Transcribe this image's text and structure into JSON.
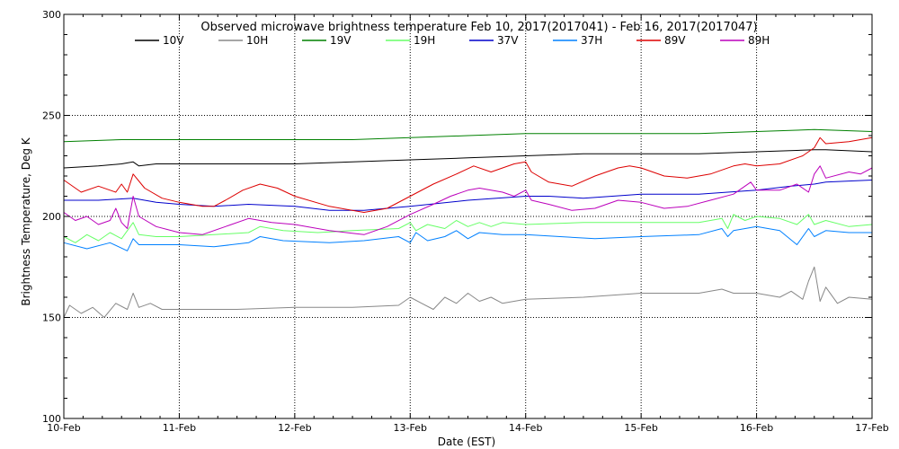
{
  "chart_data": {
    "type": "line",
    "title": "Observed microwave brightness temperature Feb 10, 2017(2017041) - Feb 16, 2017(2017047)",
    "xlabel": "Date (EST)",
    "ylabel": "Brightness Temperature, Deg K",
    "xlim": [
      0,
      7
    ],
    "ylim": [
      100,
      300
    ],
    "x_ticks": [
      {
        "value": 0,
        "label": "10-Feb"
      },
      {
        "value": 1,
        "label": "11-Feb"
      },
      {
        "value": 2,
        "label": "12-Feb"
      },
      {
        "value": 3,
        "label": "13-Feb"
      },
      {
        "value": 4,
        "label": "14-Feb"
      },
      {
        "value": 5,
        "label": "15-Feb"
      },
      {
        "value": 6,
        "label": "16-Feb"
      },
      {
        "value": 7,
        "label": "17-Feb"
      }
    ],
    "y_ticks": [
      {
        "value": 100,
        "label": "100"
      },
      {
        "value": 150,
        "label": "150"
      },
      {
        "value": 200,
        "label": "200"
      },
      {
        "value": 250,
        "label": "250"
      },
      {
        "value": 300,
        "label": "300"
      }
    ],
    "grid": {
      "x_dotted": true,
      "y_dotted": true
    },
    "legend_position": "top",
    "series": [
      {
        "name": "10V",
        "color": "#000000",
        "points": [
          [
            0,
            224
          ],
          [
            0.3,
            225
          ],
          [
            0.5,
            226
          ],
          [
            0.6,
            227
          ],
          [
            0.65,
            225
          ],
          [
            0.8,
            226
          ],
          [
            1,
            226
          ],
          [
            1.5,
            226
          ],
          [
            2,
            226
          ],
          [
            2.5,
            227
          ],
          [
            3,
            228
          ],
          [
            3.5,
            229
          ],
          [
            4,
            230
          ],
          [
            4.5,
            231
          ],
          [
            5,
            231
          ],
          [
            5.5,
            231
          ],
          [
            6,
            232
          ],
          [
            6.5,
            233
          ],
          [
            6.6,
            233
          ],
          [
            7,
            232
          ]
        ]
      },
      {
        "name": "10H",
        "color": "#888888",
        "points": [
          [
            0,
            150
          ],
          [
            0.05,
            156
          ],
          [
            0.15,
            152
          ],
          [
            0.25,
            155
          ],
          [
            0.35,
            150
          ],
          [
            0.45,
            157
          ],
          [
            0.55,
            154
          ],
          [
            0.6,
            162
          ],
          [
            0.65,
            155
          ],
          [
            0.75,
            157
          ],
          [
            0.85,
            154
          ],
          [
            1,
            154
          ],
          [
            1.5,
            154
          ],
          [
            2,
            155
          ],
          [
            2.5,
            155
          ],
          [
            2.9,
            156
          ],
          [
            3,
            160
          ],
          [
            3.1,
            157
          ],
          [
            3.2,
            154
          ],
          [
            3.3,
            160
          ],
          [
            3.4,
            157
          ],
          [
            3.5,
            162
          ],
          [
            3.6,
            158
          ],
          [
            3.7,
            160
          ],
          [
            3.8,
            157
          ],
          [
            4,
            159
          ],
          [
            4.5,
            160
          ],
          [
            5,
            162
          ],
          [
            5.5,
            162
          ],
          [
            5.7,
            164
          ],
          [
            5.8,
            162
          ],
          [
            6,
            162
          ],
          [
            6.2,
            160
          ],
          [
            6.3,
            163
          ],
          [
            6.4,
            159
          ],
          [
            6.45,
            168
          ],
          [
            6.5,
            175
          ],
          [
            6.55,
            158
          ],
          [
            6.6,
            165
          ],
          [
            6.7,
            157
          ],
          [
            6.8,
            160
          ],
          [
            7,
            159
          ]
        ]
      },
      {
        "name": "19V",
        "color": "#008000",
        "points": [
          [
            0,
            237
          ],
          [
            0.5,
            238
          ],
          [
            1,
            238
          ],
          [
            1.5,
            238
          ],
          [
            2,
            238
          ],
          [
            2.5,
            238
          ],
          [
            3,
            239
          ],
          [
            3.5,
            240
          ],
          [
            4,
            241
          ],
          [
            4.5,
            241
          ],
          [
            5,
            241
          ],
          [
            5.5,
            241
          ],
          [
            6,
            242
          ],
          [
            6.5,
            243
          ],
          [
            7,
            242
          ]
        ]
      },
      {
        "name": "19H",
        "color": "#66FF66",
        "points": [
          [
            0,
            190
          ],
          [
            0.1,
            187
          ],
          [
            0.2,
            191
          ],
          [
            0.3,
            188
          ],
          [
            0.4,
            192
          ],
          [
            0.5,
            189
          ],
          [
            0.6,
            197
          ],
          [
            0.65,
            191
          ],
          [
            0.8,
            190
          ],
          [
            1,
            190
          ],
          [
            1.3,
            191
          ],
          [
            1.6,
            192
          ],
          [
            1.7,
            195
          ],
          [
            1.9,
            193
          ],
          [
            2.2,
            192
          ],
          [
            2.5,
            193
          ],
          [
            2.9,
            194
          ],
          [
            3,
            197
          ],
          [
            3.05,
            193
          ],
          [
            3.15,
            196
          ],
          [
            3.3,
            194
          ],
          [
            3.4,
            198
          ],
          [
            3.5,
            195
          ],
          [
            3.6,
            197
          ],
          [
            3.7,
            195
          ],
          [
            3.8,
            197
          ],
          [
            4,
            196
          ],
          [
            4.5,
            197
          ],
          [
            5,
            197
          ],
          [
            5.5,
            197
          ],
          [
            5.7,
            199
          ],
          [
            5.75,
            194
          ],
          [
            5.8,
            201
          ],
          [
            5.9,
            198
          ],
          [
            6,
            200
          ],
          [
            6.2,
            199
          ],
          [
            6.35,
            196
          ],
          [
            6.45,
            201
          ],
          [
            6.5,
            196
          ],
          [
            6.6,
            198
          ],
          [
            6.8,
            195
          ],
          [
            7,
            196
          ]
        ]
      },
      {
        "name": "37V",
        "color": "#0000CC",
        "points": [
          [
            0,
            208
          ],
          [
            0.3,
            208
          ],
          [
            0.6,
            209
          ],
          [
            0.8,
            207
          ],
          [
            1,
            206
          ],
          [
            1.3,
            205
          ],
          [
            1.6,
            206
          ],
          [
            2,
            205
          ],
          [
            2.3,
            203
          ],
          [
            2.6,
            203
          ],
          [
            3,
            205
          ],
          [
            3.5,
            208
          ],
          [
            4,
            210
          ],
          [
            4.2,
            210
          ],
          [
            4.5,
            209
          ],
          [
            5,
            211
          ],
          [
            5.5,
            211
          ],
          [
            6,
            213
          ],
          [
            6.3,
            215
          ],
          [
            6.5,
            216
          ],
          [
            6.6,
            217
          ],
          [
            7,
            218
          ]
        ]
      },
      {
        "name": "37H",
        "color": "#0080FF",
        "points": [
          [
            0,
            187
          ],
          [
            0.2,
            184
          ],
          [
            0.4,
            187
          ],
          [
            0.55,
            183
          ],
          [
            0.6,
            189
          ],
          [
            0.65,
            186
          ],
          [
            0.8,
            186
          ],
          [
            1,
            186
          ],
          [
            1.3,
            185
          ],
          [
            1.6,
            187
          ],
          [
            1.7,
            190
          ],
          [
            1.9,
            188
          ],
          [
            2.3,
            187
          ],
          [
            2.6,
            188
          ],
          [
            2.9,
            190
          ],
          [
            3,
            187
          ],
          [
            3.05,
            192
          ],
          [
            3.15,
            188
          ],
          [
            3.3,
            190
          ],
          [
            3.4,
            193
          ],
          [
            3.5,
            189
          ],
          [
            3.6,
            192
          ],
          [
            3.8,
            191
          ],
          [
            4,
            191
          ],
          [
            4.3,
            190
          ],
          [
            4.6,
            189
          ],
          [
            5,
            190
          ],
          [
            5.5,
            191
          ],
          [
            5.7,
            194
          ],
          [
            5.75,
            190
          ],
          [
            5.8,
            193
          ],
          [
            6,
            195
          ],
          [
            6.2,
            193
          ],
          [
            6.35,
            186
          ],
          [
            6.45,
            194
          ],
          [
            6.5,
            190
          ],
          [
            6.6,
            193
          ],
          [
            6.8,
            192
          ],
          [
            7,
            192
          ]
        ]
      },
      {
        "name": "89V",
        "color": "#DD0000",
        "points": [
          [
            0,
            218
          ],
          [
            0.15,
            212
          ],
          [
            0.3,
            215
          ],
          [
            0.45,
            212
          ],
          [
            0.5,
            216
          ],
          [
            0.55,
            212
          ],
          [
            0.6,
            221
          ],
          [
            0.7,
            214
          ],
          [
            0.85,
            209
          ],
          [
            1,
            207
          ],
          [
            1.2,
            205
          ],
          [
            1.3,
            205
          ],
          [
            1.4,
            208
          ],
          [
            1.55,
            213
          ],
          [
            1.7,
            216
          ],
          [
            1.85,
            214
          ],
          [
            2,
            210
          ],
          [
            2.3,
            205
          ],
          [
            2.6,
            202
          ],
          [
            2.8,
            204
          ],
          [
            3,
            210
          ],
          [
            3.2,
            216
          ],
          [
            3.4,
            221
          ],
          [
            3.55,
            225
          ],
          [
            3.7,
            222
          ],
          [
            3.9,
            226
          ],
          [
            4,
            227
          ],
          [
            4.05,
            222
          ],
          [
            4.2,
            217
          ],
          [
            4.4,
            215
          ],
          [
            4.6,
            220
          ],
          [
            4.8,
            224
          ],
          [
            4.9,
            225
          ],
          [
            5,
            224
          ],
          [
            5.2,
            220
          ],
          [
            5.4,
            219
          ],
          [
            5.6,
            221
          ],
          [
            5.8,
            225
          ],
          [
            5.9,
            226
          ],
          [
            6,
            225
          ],
          [
            6.2,
            226
          ],
          [
            6.4,
            230
          ],
          [
            6.5,
            234
          ],
          [
            6.55,
            239
          ],
          [
            6.6,
            236
          ],
          [
            6.8,
            237
          ],
          [
            7,
            239
          ]
        ]
      },
      {
        "name": "89H",
        "color": "#BB00BB",
        "points": [
          [
            0,
            202
          ],
          [
            0.1,
            198
          ],
          [
            0.2,
            200
          ],
          [
            0.3,
            196
          ],
          [
            0.4,
            198
          ],
          [
            0.45,
            204
          ],
          [
            0.5,
            197
          ],
          [
            0.55,
            194
          ],
          [
            0.6,
            210
          ],
          [
            0.65,
            200
          ],
          [
            0.8,
            195
          ],
          [
            1,
            192
          ],
          [
            1.2,
            191
          ],
          [
            1.4,
            195
          ],
          [
            1.6,
            199
          ],
          [
            1.8,
            197
          ],
          [
            2,
            196
          ],
          [
            2.3,
            193
          ],
          [
            2.6,
            191
          ],
          [
            2.8,
            195
          ],
          [
            3,
            201
          ],
          [
            3.2,
            206
          ],
          [
            3.35,
            210
          ],
          [
            3.5,
            213
          ],
          [
            3.6,
            214
          ],
          [
            3.7,
            213
          ],
          [
            3.8,
            212
          ],
          [
            3.9,
            210
          ],
          [
            4,
            213
          ],
          [
            4.05,
            208
          ],
          [
            4.2,
            206
          ],
          [
            4.4,
            203
          ],
          [
            4.6,
            204
          ],
          [
            4.8,
            208
          ],
          [
            5,
            207
          ],
          [
            5.2,
            204
          ],
          [
            5.4,
            205
          ],
          [
            5.6,
            208
          ],
          [
            5.8,
            211
          ],
          [
            5.95,
            217
          ],
          [
            6,
            213
          ],
          [
            6.2,
            213
          ],
          [
            6.35,
            216
          ],
          [
            6.45,
            212
          ],
          [
            6.5,
            221
          ],
          [
            6.55,
            225
          ],
          [
            6.6,
            219
          ],
          [
            6.8,
            222
          ],
          [
            6.9,
            221
          ],
          [
            7,
            224
          ]
        ]
      }
    ]
  }
}
